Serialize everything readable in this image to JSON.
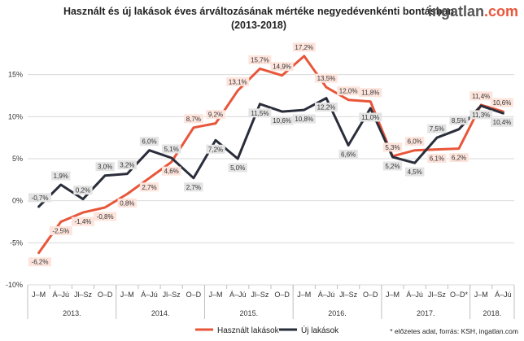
{
  "brand": {
    "base": "ingatlan",
    "suffix": ".com"
  },
  "chart_data": {
    "type": "line",
    "title": [
      "Használt és új lakások éves árváltozásának mértéke negyedévenkénti bontásban",
      "(2013-2018)"
    ],
    "xlabel": "",
    "ylabel": "",
    "ylim": [
      -10,
      20
    ],
    "yticks": [
      -10,
      -5,
      0,
      5,
      10,
      15
    ],
    "ytick_labels": [
      "-10%",
      "-5%",
      "0%",
      "5%",
      "10%",
      "15%"
    ],
    "grid": true,
    "categories": [
      "J–M",
      "Á–Jú",
      "Jl–Sz",
      "O–D",
      "J–M",
      "Á–Jú",
      "Jl–Sz",
      "O–D",
      "J–M",
      "Á–Jú",
      "Jl–Sz",
      "O–D",
      "J–M",
      "Á–Jú",
      "Jl–Sz",
      "O–D",
      "J–M",
      "Á–Jú",
      "Jl–Sz",
      "O–D*",
      "J–M",
      "Á–Jú"
    ],
    "year_groups": [
      {
        "label": "2013.",
        "count": 4
      },
      {
        "label": "2014.",
        "count": 4
      },
      {
        "label": "2015.",
        "count": 4
      },
      {
        "label": "2016.",
        "count": 4
      },
      {
        "label": "2017.",
        "count": 4
      },
      {
        "label": "2018.",
        "count": 2
      }
    ],
    "series": [
      {
        "name": "Használt lakások",
        "color": "#e8563a",
        "values": [
          -6.2,
          -2.5,
          -1.4,
          -0.8,
          0.8,
          2.7,
          4.6,
          8.7,
          9.2,
          13.1,
          15.7,
          14.9,
          17.2,
          13.5,
          12.0,
          11.8,
          5.3,
          6.0,
          6.1,
          6.2,
          11.4,
          10.6
        ],
        "labels": [
          "-6,2%",
          "-2,5%",
          "-1,4%",
          "-0,8%",
          "0,8%",
          "2,7%",
          "4,6%",
          "8,7%",
          "9,2%",
          "13,1%",
          "15,7%",
          "14,9%",
          "17,2%",
          "13,5%",
          "12,0%",
          "11,8%",
          "5,3%",
          "6,0%",
          "6,1%",
          "6,2%",
          "11,4%",
          "10,6%"
        ]
      },
      {
        "name": "Új lakások",
        "color": "#2a2e3b",
        "values": [
          -0.7,
          1.9,
          0.2,
          3.0,
          3.2,
          6.0,
          5.1,
          2.7,
          7.2,
          5.0,
          11.5,
          10.6,
          10.8,
          12.2,
          6.6,
          11.0,
          5.2,
          4.5,
          7.5,
          8.5,
          11.3,
          10.4
        ],
        "labels": [
          "-0,7%",
          "1,9%",
          "0,2%",
          "3,0%",
          "3,2%",
          "6,0%",
          "5,1%",
          "2,7%",
          "7,2%",
          "5,0%",
          "11,5%",
          "10,6%",
          "10,8%",
          "12,2%",
          "6,6%",
          "11,0%",
          "5,2%",
          "4,5%",
          "7,5%",
          "8,5%",
          "11,3%",
          "10,4%"
        ]
      }
    ],
    "legend_position": "bottom",
    "source_note": "* előzetes adat, forrás: KSH, ingatlan.com"
  }
}
